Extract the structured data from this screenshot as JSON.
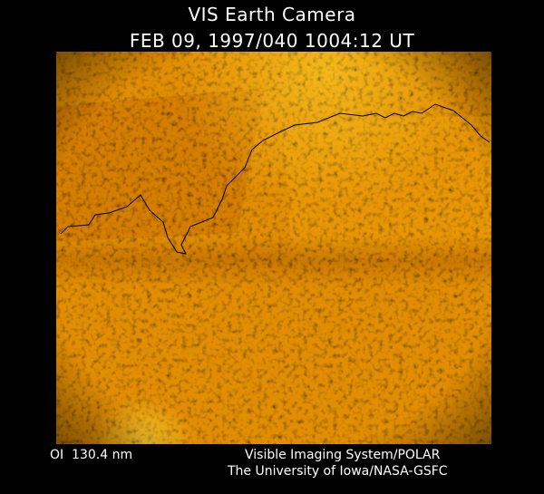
{
  "header": {
    "title": "VIS Earth Camera",
    "subtitle": "FEB 09, 1997/040 1004:12 UT"
  },
  "footer": {
    "wavelength": "OI  130.4 nm",
    "credit_line1": "Visible Imaging System/POLAR",
    "credit_line2": "The University of Iowa/NASA-GSFC"
  },
  "image": {
    "colormap": [
      "#1a0500",
      "#7a2a00",
      "#c86a00",
      "#f0a000",
      "#ffe040"
    ],
    "coastline_color": "#000000"
  }
}
